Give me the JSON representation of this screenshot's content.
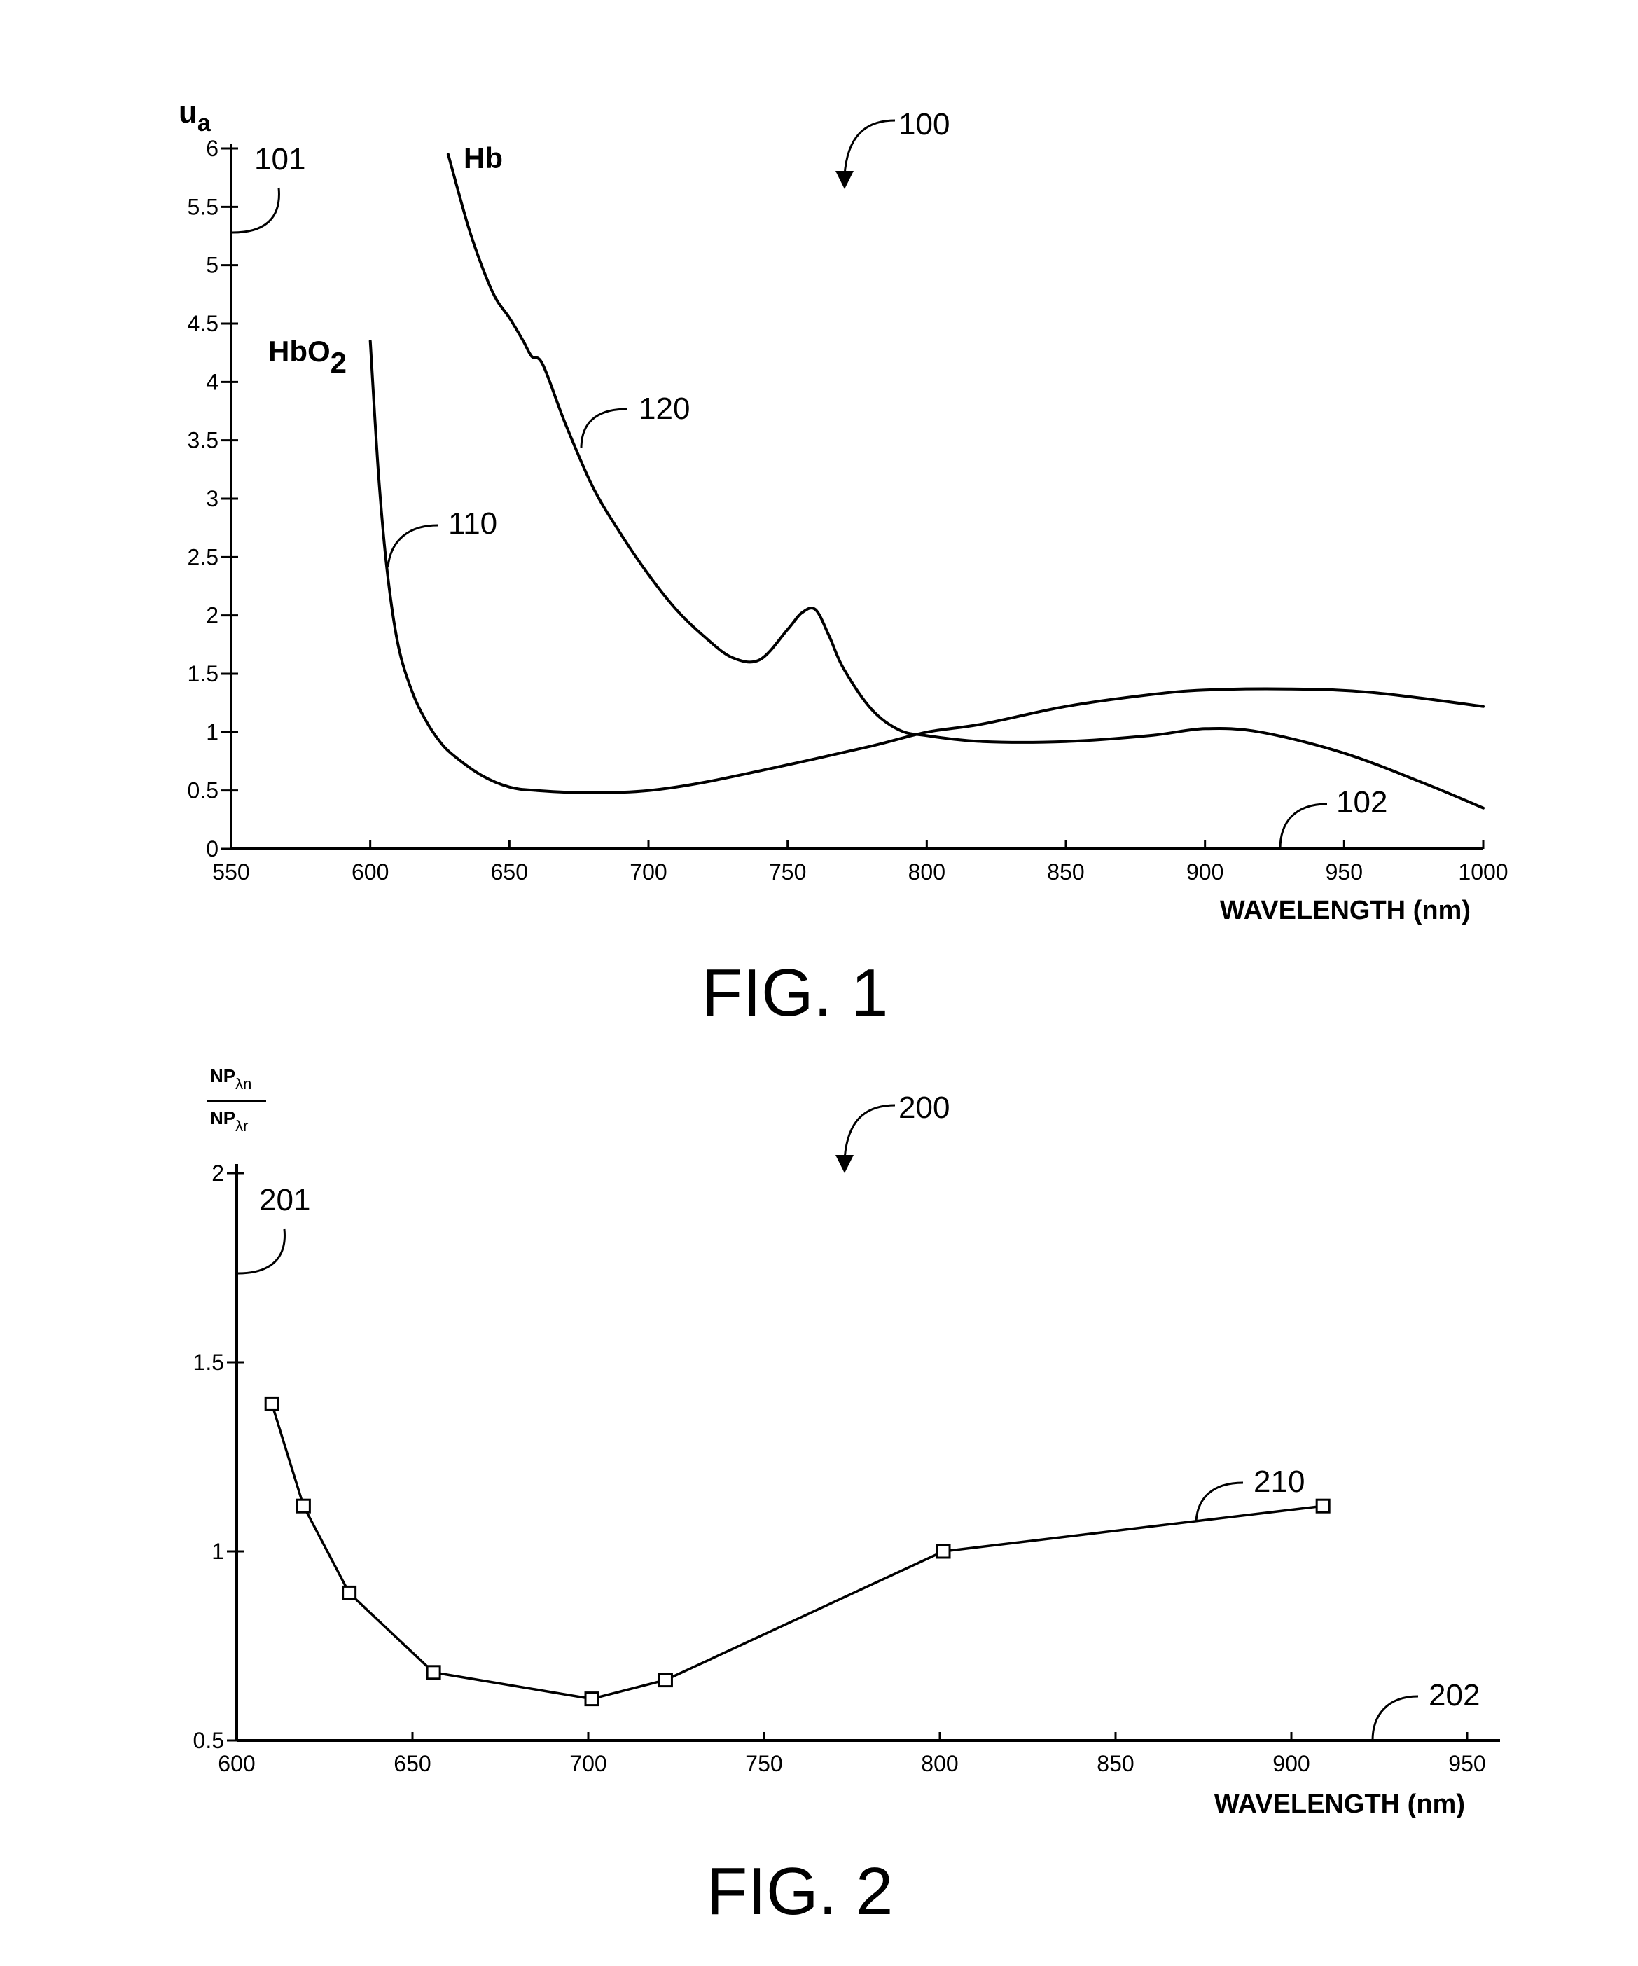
{
  "chart_data": [
    {
      "type": "line",
      "title": "FIG. 1",
      "figure_ref": "100",
      "xlabel": "WAVELENGTH (nm)",
      "ylabel_main": "u",
      "ylabel_sub": "a",
      "xlim": [
        550,
        1000
      ],
      "ylim": [
        0,
        6
      ],
      "x_ticks": [
        550,
        600,
        650,
        700,
        750,
        800,
        850,
        900,
        950,
        1000
      ],
      "x_tick_labels": [
        "550",
        "600",
        "650",
        "700",
        "750",
        "800",
        "850",
        "900",
        "950",
        "1000"
      ],
      "y_ticks": [
        0,
        0.5,
        1,
        1.5,
        2,
        2.5,
        3,
        3.5,
        4,
        4.5,
        5,
        5.5,
        6
      ],
      "y_tick_labels": [
        "0",
        "0.5",
        "1",
        "1.5",
        "2",
        "2.5",
        "3",
        "3.5",
        "4",
        "4.5",
        "5",
        "5.5",
        "6"
      ],
      "y_axis_ref": "101",
      "x_axis_ref": "102",
      "grid": false,
      "series": [
        {
          "name": "HbO",
          "name_sub": "2",
          "ref": "110",
          "x": [
            600,
            603,
            606,
            610,
            615,
            620,
            625,
            630,
            640,
            650,
            660,
            680,
            700,
            720,
            750,
            780,
            800,
            820,
            850,
            880,
            900,
            930,
            960,
            1000
          ],
          "y": [
            4.35,
            3.2,
            2.4,
            1.75,
            1.35,
            1.1,
            0.92,
            0.8,
            0.63,
            0.53,
            0.5,
            0.48,
            0.5,
            0.57,
            0.72,
            0.88,
            1.0,
            1.07,
            1.22,
            1.32,
            1.36,
            1.37,
            1.34,
            1.22
          ]
        },
        {
          "name": "Hb",
          "ref": "120",
          "x": [
            628,
            635,
            640,
            645,
            650,
            655,
            658,
            662,
            670,
            680,
            690,
            700,
            710,
            720,
            730,
            740,
            750,
            755,
            760,
            765,
            770,
            780,
            790,
            800,
            820,
            850,
            880,
            900,
            920,
            950,
            980,
            1000
          ],
          "y": [
            5.95,
            5.35,
            5.0,
            4.72,
            4.55,
            4.35,
            4.22,
            4.15,
            3.65,
            3.1,
            2.7,
            2.35,
            2.05,
            1.82,
            1.64,
            1.62,
            1.88,
            2.02,
            2.05,
            1.82,
            1.55,
            1.2,
            1.02,
            0.97,
            0.92,
            0.92,
            0.97,
            1.03,
            1.0,
            0.82,
            0.55,
            0.35
          ]
        }
      ]
    },
    {
      "type": "line",
      "title": "FIG. 2",
      "figure_ref": "200",
      "xlabel": "WAVELENGTH (nm)",
      "ylabel_num": "NP",
      "ylabel_num_sub": "λn",
      "ylabel_den": "NP",
      "ylabel_den_sub": "λr",
      "xlim": [
        600,
        950
      ],
      "ylim": [
        0.5,
        2
      ],
      "x_ticks": [
        600,
        650,
        700,
        750,
        800,
        850,
        900,
        950
      ],
      "x_tick_labels": [
        "600",
        "650",
        "700",
        "750",
        "800",
        "850",
        "900",
        "950"
      ],
      "y_ticks": [
        0.5,
        1,
        1.5,
        2
      ],
      "y_tick_labels": [
        "0.5",
        "1",
        "1.5",
        "2"
      ],
      "y_axis_ref": "201",
      "x_axis_ref": "202",
      "grid": false,
      "series": [
        {
          "ref": "210",
          "x": [
            610,
            619,
            632,
            656,
            701,
            722,
            801,
            909
          ],
          "y": [
            1.39,
            1.12,
            0.89,
            0.68,
            0.61,
            0.66,
            1.0,
            1.12
          ]
        }
      ]
    }
  ]
}
